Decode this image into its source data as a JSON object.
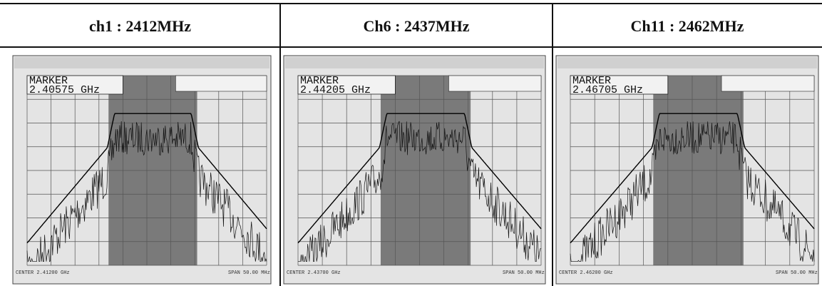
{
  "table": {
    "headers": [
      "ch1 : 2412MHz",
      "Ch6 : 2437MHz",
      "Ch11 : 2462MHz"
    ],
    "cells": [
      {
        "marker_label": "MARKER",
        "marker_value": "2.40575 GHz",
        "center": "CENTER 2.41200 GHz",
        "span": "SPAN 50.00 MHz"
      },
      {
        "marker_label": "MARKER",
        "marker_value": "2.44205 GHz",
        "center": "CENTER 2.43700 GHz",
        "span": "SPAN 50.00 MHz"
      },
      {
        "marker_label": "MARKER",
        "marker_value": "2.46705 GHz",
        "center": "CENTER 2.46200 GHz",
        "span": "SPAN 50.00 MHz"
      }
    ]
  }
}
